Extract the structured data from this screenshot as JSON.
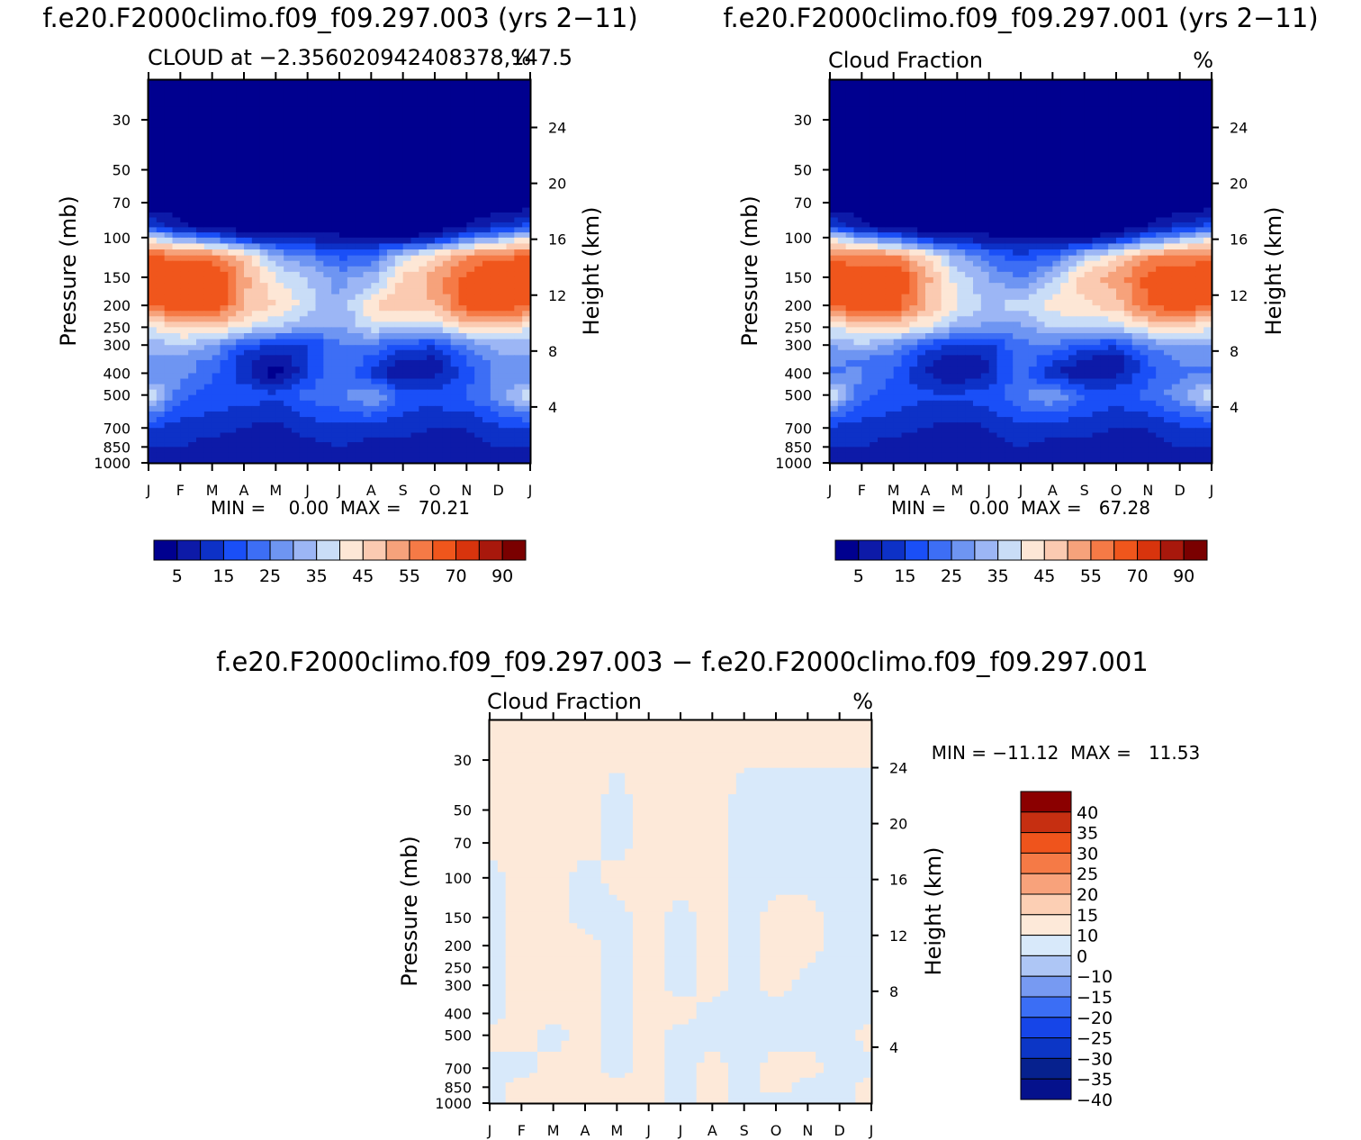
{
  "palette_abs": [
    "#00008f",
    "#0d1aa8",
    "#0d31c7",
    "#1a4ff7",
    "#3d6ef5",
    "#6e95f2",
    "#9cb6f5",
    "#c9ddf7",
    "#fde7d6",
    "#fbcab1",
    "#f6a27b",
    "#f57a46",
    "#f0561c",
    "#d8340d",
    "#a8180c",
    "#7a0000"
  ],
  "palette_diff": [
    "#ffffff",
    "#05118c",
    "#06218e",
    "#0c36c6",
    "#1645e8",
    "#3b6ef5",
    "#779af2",
    "#aec6f5",
    "#d8e9fa",
    "#fde9d9",
    "#fccfb4",
    "#f8a27b",
    "#f57a46",
    "#ef541c",
    "#c62f11",
    "#8b0000"
  ],
  "panels": [
    {
      "title": "f.e20.F2000climo.f09_f09.297.003 (yrs 2−11)",
      "subtitle_left": "CLOUD at −2.356020942408378,147.5",
      "subtitle_right": "%",
      "stats": "MIN =    0.00  MAX =   70.21",
      "colorbar_labels": [
        "5",
        "15",
        "25",
        "35",
        "45",
        "55",
        "70",
        "90"
      ],
      "chart_data": {
        "type": "heatmap",
        "x": [
          "J",
          "F",
          "M",
          "A",
          "M",
          "J",
          "J",
          "A",
          "S",
          "O",
          "N",
          "D",
          "J"
        ],
        "y_pressure_ticks": [
          30,
          50,
          70,
          100,
          150,
          200,
          250,
          300,
          400,
          500,
          700,
          850,
          1000
        ],
        "ylabel": "Pressure (mb)",
        "y2_ticks": [
          24,
          20,
          16,
          12,
          8,
          4
        ],
        "y2label": "Height (km)",
        "levels": [
          5,
          10,
          15,
          20,
          25,
          30,
          35,
          40,
          45,
          50,
          55,
          60,
          70,
          80,
          90
        ],
        "row_pressures": [
          20,
          50,
          70,
          90,
          100,
          120,
          150,
          200,
          250,
          300,
          350,
          400,
          500,
          700,
          850,
          1000
        ],
        "values": [
          [
            0,
            0,
            0,
            0,
            0,
            0,
            0,
            0,
            0,
            0,
            0,
            0,
            0
          ],
          [
            0,
            0,
            0,
            0,
            0,
            0,
            0,
            0,
            0,
            0,
            0,
            0,
            0
          ],
          [
            0,
            0,
            0,
            0,
            0,
            0,
            0,
            0,
            0,
            0,
            0,
            0,
            0
          ],
          [
            18,
            6,
            4,
            2,
            2,
            2,
            2,
            1,
            1,
            2,
            6,
            12,
            18
          ],
          [
            40,
            28,
            22,
            10,
            8,
            8,
            6,
            4,
            4,
            8,
            22,
            30,
            40
          ],
          [
            60,
            58,
            56,
            48,
            30,
            25,
            18,
            20,
            36,
            45,
            55,
            58,
            60
          ],
          [
            66,
            68,
            70,
            52,
            40,
            35,
            28,
            32,
            46,
            52,
            62,
            68,
            66
          ],
          [
            60,
            65,
            66,
            50,
            45,
            38,
            30,
            45,
            48,
            50,
            62,
            66,
            60
          ],
          [
            40,
            45,
            48,
            40,
            35,
            30,
            30,
            38,
            36,
            36,
            45,
            48,
            40
          ],
          [
            32,
            36,
            30,
            18,
            15,
            14,
            24,
            25,
            18,
            16,
            26,
            32,
            32
          ],
          [
            28,
            26,
            25,
            12,
            5,
            15,
            26,
            18,
            10,
            8,
            20,
            28,
            28
          ],
          [
            24,
            28,
            20,
            12,
            2,
            14,
            26,
            12,
            5,
            8,
            18,
            26,
            24
          ],
          [
            40,
            22,
            18,
            18,
            16,
            22,
            24,
            32,
            18,
            18,
            20,
            28,
            40
          ],
          [
            15,
            12,
            12,
            10,
            8,
            12,
            14,
            12,
            12,
            10,
            10,
            14,
            15
          ],
          [
            10,
            10,
            8,
            6,
            5,
            8,
            10,
            8,
            8,
            6,
            6,
            10,
            10
          ],
          [
            8,
            8,
            6,
            6,
            5,
            6,
            8,
            6,
            6,
            5,
            6,
            8,
            8
          ]
        ],
        "min": 0.0,
        "max": 70.21
      }
    },
    {
      "title": "f.e20.F2000climo.f09_f09.297.001 (yrs 2−11)",
      "subtitle_left": "Cloud Fraction",
      "subtitle_right": "%",
      "stats": "MIN =    0.00  MAX =   67.28",
      "colorbar_labels": [
        "5",
        "15",
        "25",
        "35",
        "45",
        "55",
        "70",
        "90"
      ],
      "chart_data": {
        "type": "heatmap",
        "x": [
          "J",
          "F",
          "M",
          "A",
          "M",
          "J",
          "J",
          "A",
          "S",
          "O",
          "N",
          "D",
          "J"
        ],
        "y_pressure_ticks": [
          30,
          50,
          70,
          100,
          150,
          200,
          250,
          300,
          400,
          500,
          700,
          850,
          1000
        ],
        "ylabel": "Pressure (mb)",
        "y2_ticks": [
          24,
          20,
          16,
          12,
          8,
          4
        ],
        "y2label": "Height (km)",
        "levels": [
          5,
          10,
          15,
          20,
          25,
          30,
          35,
          40,
          45,
          50,
          55,
          60,
          70,
          80,
          90
        ],
        "row_pressures": [
          20,
          50,
          70,
          90,
          100,
          120,
          150,
          200,
          250,
          300,
          350,
          400,
          500,
          700,
          850,
          1000
        ],
        "values": [
          [
            0,
            0,
            0,
            0,
            0,
            0,
            0,
            0,
            0,
            0,
            0,
            0,
            0
          ],
          [
            0,
            0,
            0,
            0,
            0,
            0,
            0,
            0,
            0,
            0,
            0,
            0,
            0
          ],
          [
            0,
            0,
            0,
            0,
            0,
            0,
            0,
            0,
            0,
            0,
            0,
            0,
            0
          ],
          [
            18,
            6,
            4,
            2,
            2,
            2,
            1,
            1,
            1,
            2,
            6,
            12,
            18
          ],
          [
            40,
            28,
            22,
            10,
            8,
            6,
            5,
            4,
            4,
            8,
            22,
            30,
            40
          ],
          [
            58,
            56,
            55,
            45,
            30,
            22,
            16,
            20,
            34,
            44,
            54,
            56,
            58
          ],
          [
            64,
            66,
            67,
            52,
            38,
            30,
            25,
            34,
            48,
            52,
            62,
            66,
            64
          ],
          [
            60,
            64,
            65,
            50,
            40,
            34,
            38,
            42,
            44,
            48,
            60,
            64,
            60
          ],
          [
            40,
            44,
            46,
            40,
            32,
            28,
            28,
            36,
            35,
            36,
            44,
            46,
            40
          ],
          [
            30,
            34,
            28,
            18,
            14,
            14,
            24,
            24,
            18,
            16,
            26,
            30,
            30
          ],
          [
            26,
            24,
            22,
            12,
            6,
            10,
            24,
            16,
            10,
            6,
            20,
            26,
            26
          ],
          [
            24,
            26,
            20,
            10,
            4,
            10,
            24,
            10,
            6,
            8,
            18,
            24,
            24
          ],
          [
            40,
            22,
            18,
            16,
            16,
            18,
            24,
            30,
            20,
            18,
            22,
            28,
            40
          ],
          [
            14,
            12,
            12,
            10,
            8,
            10,
            14,
            12,
            12,
            10,
            10,
            14,
            14
          ],
          [
            10,
            10,
            8,
            6,
            5,
            8,
            10,
            8,
            8,
            5,
            6,
            10,
            10
          ],
          [
            8,
            8,
            6,
            6,
            5,
            6,
            8,
            6,
            6,
            5,
            6,
            8,
            8
          ]
        ],
        "min": 0.0,
        "max": 67.28
      }
    },
    {
      "title": "f.e20.F2000climo.f09_f09.297.003 − f.e20.F2000climo.f09_f09.297.001",
      "subtitle_left": "Cloud Fraction",
      "subtitle_right": "%",
      "stats": "MIN = −11.12  MAX =   11.53",
      "colorbar_labels": [
        "40",
        "35",
        "30",
        "25",
        "20",
        "15",
        "10",
        "0",
        "−10",
        "−15",
        "−20",
        "−25",
        "−30",
        "−35",
        "−40"
      ],
      "chart_data": {
        "type": "heatmap",
        "x": [
          "J",
          "F",
          "M",
          "A",
          "M",
          "J",
          "J",
          "A",
          "S",
          "O",
          "N",
          "D",
          "J"
        ],
        "y_pressure_ticks": [
          30,
          50,
          70,
          100,
          150,
          200,
          250,
          300,
          400,
          500,
          700,
          850,
          1000
        ],
        "ylabel": "Pressure (mb)",
        "y2_ticks": [
          24,
          20,
          16,
          12,
          8,
          4
        ],
        "y2label": "Height (km)",
        "levels": [
          -40,
          -35,
          -30,
          -25,
          -20,
          -15,
          -10,
          0,
          10,
          15,
          20,
          25,
          30,
          35,
          40
        ],
        "row_pressures": [
          20,
          50,
          70,
          100,
          150,
          200,
          300,
          400,
          500,
          700,
          850,
          1000
        ],
        "values": [
          [
            0.5,
            0.5,
            0.5,
            0.5,
            0.5,
            0.5,
            0.5,
            0.5,
            0.5,
            0.5,
            0.5,
            0.5,
            0.5
          ],
          [
            0.5,
            0.5,
            0.5,
            0.5,
            -0.5,
            0.5,
            0.5,
            0.5,
            -0.5,
            -0.5,
            -0.5,
            -0.5,
            -0.5
          ],
          [
            0.5,
            0.5,
            0.5,
            0.5,
            -0.5,
            0.5,
            0.5,
            0.5,
            -0.5,
            -0.5,
            -0.5,
            -0.5,
            -0.5
          ],
          [
            -0.5,
            0.5,
            0.5,
            -0.5,
            0.5,
            0.5,
            0.5,
            0.5,
            -0.5,
            -0.5,
            -0.5,
            -0.5,
            -0.5
          ],
          [
            -0.5,
            0.5,
            0.5,
            -0.5,
            -0.5,
            0.5,
            -0.5,
            0.5,
            -0.5,
            0.5,
            0.5,
            -0.5,
            -0.5
          ],
          [
            -0.5,
            0.5,
            0.5,
            0.5,
            -0.5,
            0.5,
            -0.5,
            0.5,
            -0.5,
            0.5,
            0.5,
            -0.5,
            -0.5
          ],
          [
            -0.5,
            0.5,
            0.5,
            0.5,
            -0.5,
            0.5,
            -0.5,
            0.5,
            -0.5,
            0.5,
            -0.5,
            -0.5,
            -0.5
          ],
          [
            -0.5,
            0.5,
            0.5,
            0.5,
            -0.5,
            0.5,
            0.5,
            -0.5,
            -0.5,
            -0.5,
            -0.5,
            -0.5,
            -0.5
          ],
          [
            0.5,
            0.5,
            -0.5,
            0.5,
            -0.5,
            0.5,
            -0.5,
            -0.5,
            -0.5,
            -0.5,
            -0.5,
            -0.5,
            0.5
          ],
          [
            -0.5,
            -0.5,
            0.5,
            0.5,
            -0.5,
            0.5,
            -0.5,
            0.5,
            -0.5,
            0.5,
            0.5,
            -0.5,
            -0.5
          ],
          [
            -0.5,
            0.5,
            0.5,
            0.5,
            0.5,
            0.5,
            -0.5,
            0.5,
            -0.5,
            0.5,
            -0.5,
            -0.5,
            0.5
          ],
          [
            -0.5,
            0.5,
            0.5,
            0.5,
            0.5,
            0.5,
            -0.5,
            0.5,
            -0.5,
            -0.5,
            -0.5,
            -0.5,
            0.5
          ]
        ],
        "min": -11.12,
        "max": 11.53
      }
    }
  ]
}
